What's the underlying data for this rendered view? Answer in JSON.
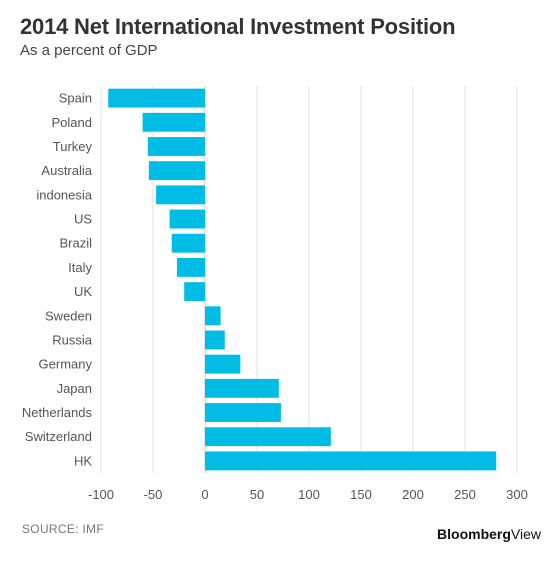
{
  "header": {
    "title": "2014 Net International Investment Position",
    "subtitle": "As a percent of GDP"
  },
  "footer": {
    "source": "SOURCE: IMF",
    "brand_bold": "Bloomberg",
    "brand_light": "View"
  },
  "chart_data": {
    "type": "bar",
    "orientation": "horizontal",
    "title": "2014 Net International Investment Position",
    "subtitle": "As a percent of GDP",
    "categories": [
      "Spain",
      "Poland",
      "Turkey",
      "Australia",
      "indonesia",
      "US",
      "Brazil",
      "Italy",
      "UK",
      "Sweden",
      "Russia",
      "Germany",
      "Japan",
      "Netherlands",
      "Switzerland",
      "HK"
    ],
    "values": [
      -93,
      -60,
      -55,
      -54,
      -47,
      -34,
      -32,
      -27,
      -20,
      15,
      19,
      34,
      71,
      73,
      121,
      280
    ],
    "xlim": [
      -100,
      300
    ],
    "xticks": [
      -100,
      -50,
      0,
      50,
      100,
      150,
      200,
      250,
      300
    ],
    "grid": true,
    "bar_color": "#00bde6",
    "grid_color": "#e2e2e2",
    "axis_color": "#cfcfcf"
  }
}
